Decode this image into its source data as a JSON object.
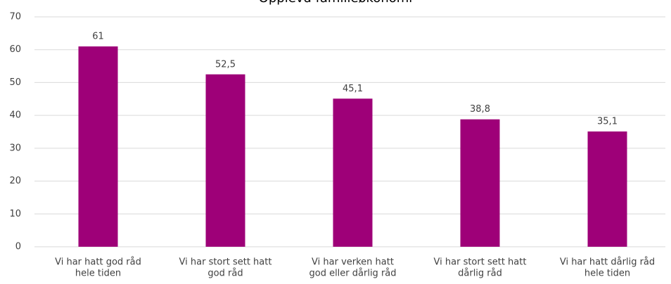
{
  "chart_data": {
    "type": "bar",
    "title": "Opplevd familieøkonomi",
    "categories": [
      [
        "Vi har hatt god råd",
        "hele tiden"
      ],
      [
        "Vi har stort sett hatt",
        "god råd"
      ],
      [
        "Vi har verken hatt",
        "god eller dårlig råd"
      ],
      [
        "Vi har stort sett hatt",
        "dårlig råd"
      ],
      [
        "Vi har hatt dårlig råd",
        "hele tiden"
      ]
    ],
    "values": [
      61,
      52.5,
      45.1,
      38.8,
      35.1
    ],
    "value_labels": [
      "61",
      "52,5",
      "45,1",
      "38,8",
      "35,1"
    ],
    "color": "#9e0078",
    "ylim": [
      0,
      70
    ],
    "yticks": [
      0,
      10,
      20,
      30,
      40,
      50,
      60,
      70
    ],
    "grid": true
  }
}
